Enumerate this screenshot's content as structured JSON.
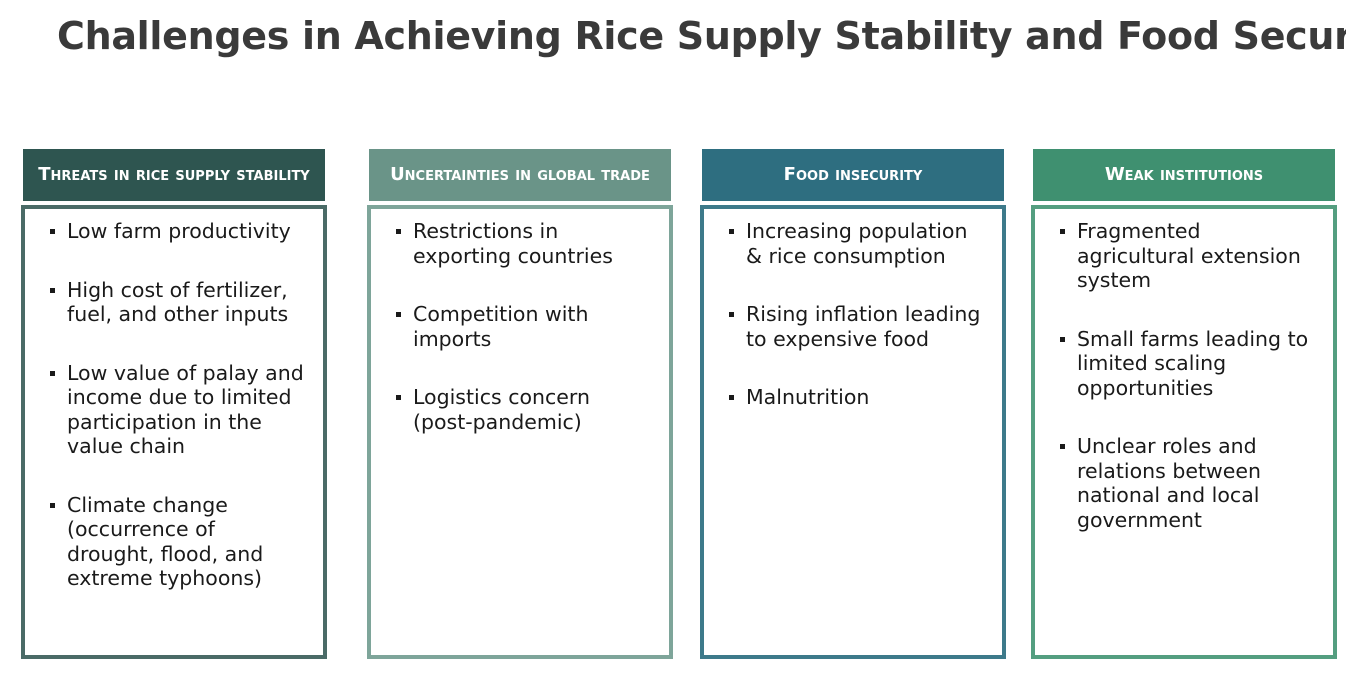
{
  "header": {
    "title": "Challenges in Achieving Rice Supply Stability and Food Security"
  },
  "columns": [
    {
      "heading": "Threats in rice supply stability",
      "color": "#2e5550",
      "border": "#4a6b67",
      "items": [
        "Low farm productivity",
        "High cost of fertilizer, fuel, and other inputs",
        "Low value of palay and income due to limited participation in the value chain",
        "Climate change (occurrence of drought, flood, and extreme typhoons)"
      ]
    },
    {
      "heading": "Uncertainties in global trade",
      "color": "#6a9488",
      "border": "#7ea59a",
      "items": [
        "Restrictions in exporting countries",
        "Competition with imports",
        "Logistics concern (post-pandemic)"
      ]
    },
    {
      "heading": "Food insecurity",
      "color": "#2e6e80",
      "border": "#3d7a8a",
      "items": [
        "Increasing population & rice consumption",
        "Rising inflation leading to expensive food",
        "Malnutrition"
      ]
    },
    {
      "heading": "Weak institutions",
      "color": "#3f9070",
      "border": "#549e80",
      "items": [
        "Fragmented agricultural extension system",
        "Small farms leading to limited scaling opportunities",
        "Unclear roles and relations between national and local government"
      ]
    }
  ]
}
